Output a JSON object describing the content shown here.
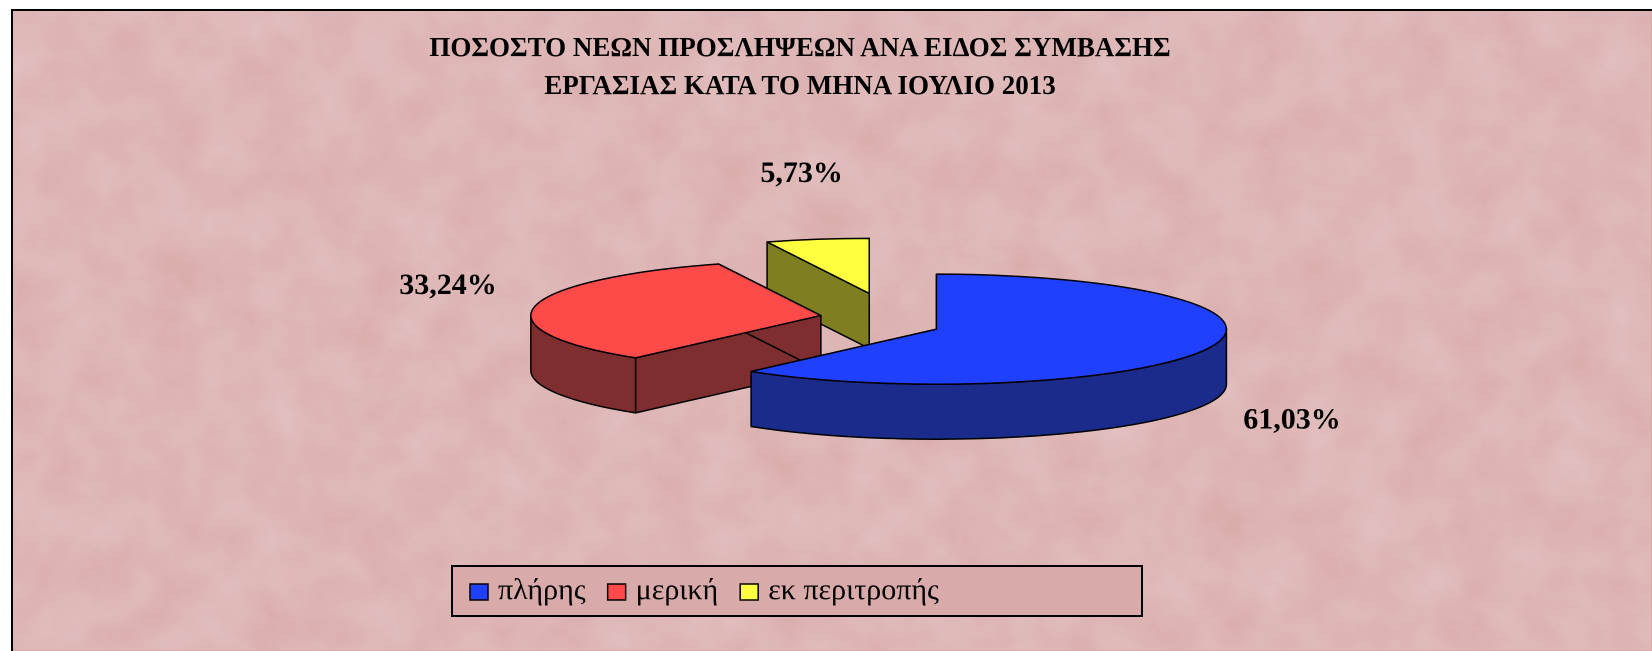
{
  "chart_data": {
    "type": "pie3d",
    "title": [
      "ΠΟΣΟΣΤΟ ΝΕΩΝ  ΠΡΟΣΛΗΨΕΩΝ ΑΝΑ ΕΙΔΟΣ ΣΥΜΒΑΣΗΣ",
      "ΕΡΓΑΣΙΑΣ ΚΑΤΑ ΤΟ ΜΗΝΑ ΙΟΥΛΙΟ 2013"
    ],
    "categories": [
      "πλήρης",
      "μερική",
      "εκ περιτροπής"
    ],
    "values": [
      61.03,
      33.24,
      5.73
    ],
    "value_labels": [
      "61,03%",
      "33,24%",
      "5,73%"
    ],
    "colors": [
      "#2040ff",
      "#ff4a4a",
      "#ffff40"
    ],
    "side_colors": [
      "#1a2b8c",
      "#7e2e2e",
      "#7f7f22"
    ],
    "legend": "bottom"
  }
}
